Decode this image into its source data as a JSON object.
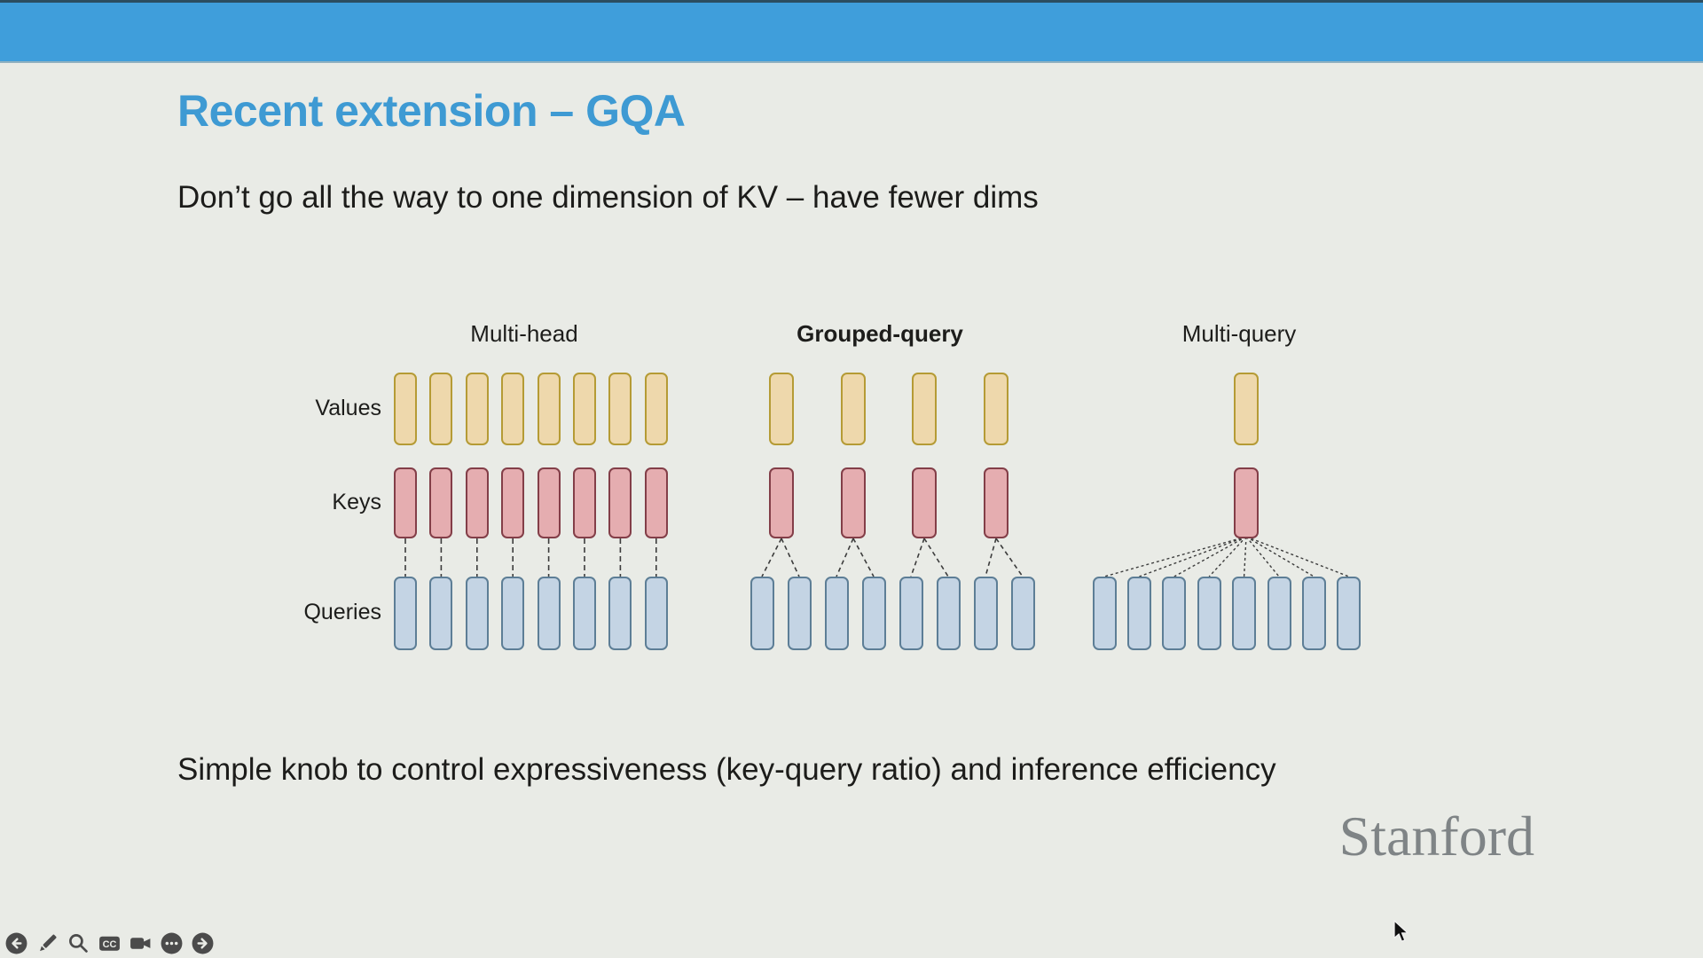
{
  "window": {
    "top_bar_color": "#3f9edb",
    "background_color": "#e9ebe6"
  },
  "slide": {
    "title": "Recent extension – GQA",
    "title_color": "#3e9ad3",
    "subtitle": "Don’t go all the way to one dimension of KV – have fewer dims",
    "footer": "Simple knob to control expressiveness (key-query ratio) and inference efficiency",
    "logo": "Stanford"
  },
  "diagram": {
    "row_labels": [
      "Values",
      "Keys",
      "Queries"
    ],
    "columns": [
      {
        "title": "Multi-head",
        "bold": false,
        "num_values": 8,
        "num_keys": 8,
        "num_queries": 8,
        "mapping": "one-to-one"
      },
      {
        "title": "Grouped-query",
        "bold": true,
        "num_values": 4,
        "num_keys": 4,
        "num_queries": 8,
        "mapping": "one-to-two"
      },
      {
        "title": "Multi-query",
        "bold": false,
        "num_values": 1,
        "num_keys": 1,
        "num_queries": 8,
        "mapping": "one-to-all"
      }
    ],
    "colors": {
      "value_fill": "#eed8ac",
      "value_border": "#b59b35",
      "key_fill": "#e5adb0",
      "key_border": "#833e48",
      "query_fill": "#c4d4e4",
      "query_border": "#5d7e96",
      "connector": "#3c3c3c"
    }
  },
  "toolbar": {
    "icons": [
      "back",
      "pencil",
      "search",
      "closed-captions",
      "camera",
      "more",
      "forward"
    ]
  }
}
